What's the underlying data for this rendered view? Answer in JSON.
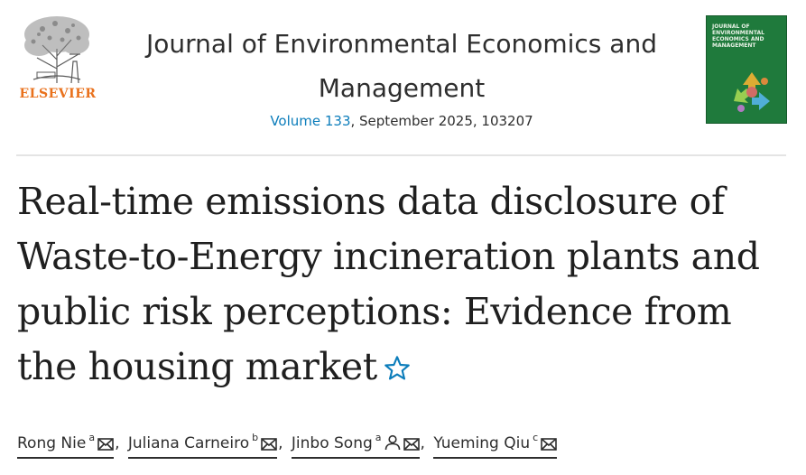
{
  "publisher": {
    "name": "ELSEVIER"
  },
  "journal": {
    "title": "Journal of Environmental Economics and Management",
    "volume_link": "Volume 133",
    "issue_rest": ", September 2025, 103207",
    "cover_text": "JOURNAL OF\nENVIRONMENTAL\nECONOMICS AND\nMANAGEMENT"
  },
  "article": {
    "title": "Real-time emissions data disclosure of Waste-to-Energy incineration plants and public risk perceptions: Evidence from the housing market"
  },
  "authors": [
    {
      "name": "Rong Nie",
      "affiliation": "a"
    },
    {
      "name": "Juliana Carneiro",
      "affiliation": "b"
    },
    {
      "name": "Jinbo Song",
      "affiliation": "a"
    },
    {
      "name": "Yueming Qiu",
      "affiliation": "c"
    }
  ],
  "colors": {
    "link": "#0c7dbb",
    "elsevier_orange": "#e9711c",
    "cover_green": "#1f7a3c"
  },
  "icons": {
    "star": "star-outline-icon",
    "email": "envelope-icon",
    "person": "person-icon"
  }
}
